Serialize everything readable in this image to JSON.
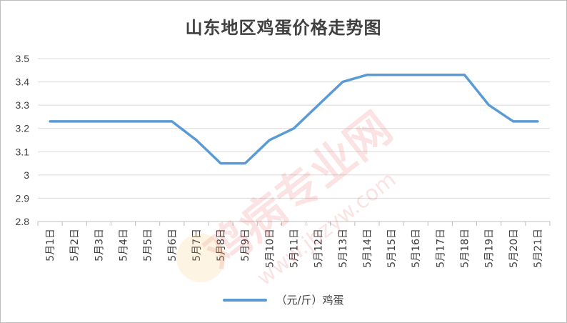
{
  "chart_data": {
    "type": "line",
    "title": "山东地区鸡蛋价格走势图",
    "xlabel": "",
    "ylabel": "",
    "ylim": [
      2.8,
      3.5
    ],
    "yticks": [
      "3.5",
      "3.4",
      "3.3",
      "3.2",
      "3.1",
      "3",
      "2.9",
      "2.8"
    ],
    "categories": [
      "5月1日",
      "5月2日",
      "5月3日",
      "5月4日",
      "5月5日",
      "5月6日",
      "5月7日",
      "5月8日",
      "5月9日",
      "5月10日",
      "5月11日",
      "5月12日",
      "5月13日",
      "5月14日",
      "5月15日",
      "5月16日",
      "5月17日",
      "5月18日",
      "5月19日",
      "5月20日",
      "5月21日"
    ],
    "series": [
      {
        "name": "（元/斤）鸡蛋",
        "values": [
          3.23,
          3.23,
          3.23,
          3.23,
          3.23,
          3.23,
          3.15,
          3.05,
          3.05,
          3.15,
          3.2,
          3.3,
          3.4,
          3.43,
          3.43,
          3.43,
          3.43,
          3.43,
          3.3,
          3.23,
          3.23
        ]
      }
    ],
    "grid": true,
    "legend_position": "bottom",
    "colors": {
      "series": "#5b9bd5",
      "grid": "#d9d9d9",
      "text": "#404040"
    }
  },
  "watermark": {
    "text": "鸡病专业网",
    "url": "www.jbzyw.com"
  }
}
